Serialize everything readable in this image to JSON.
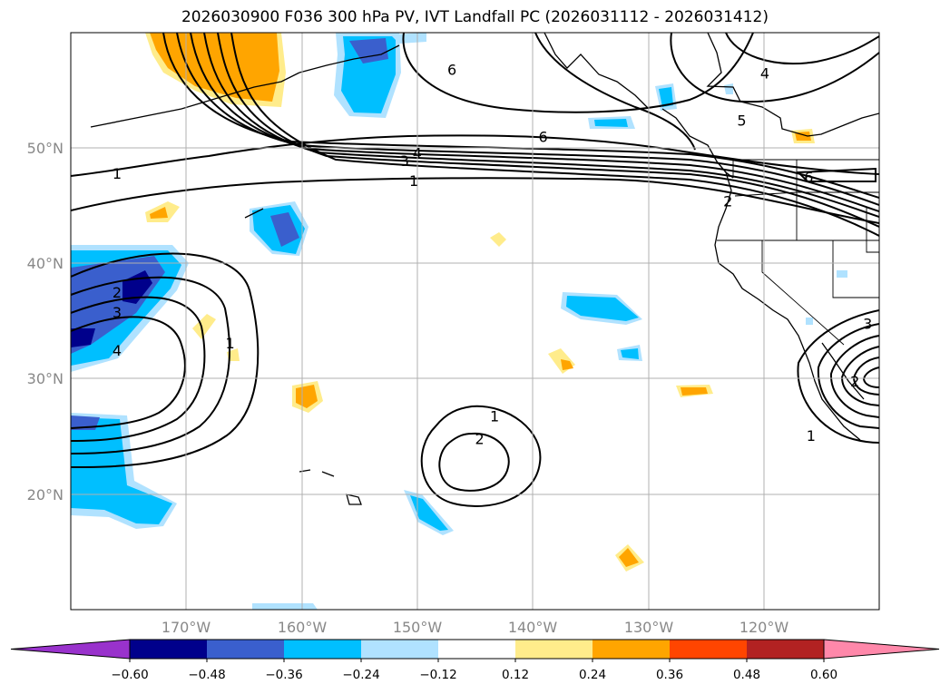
{
  "title": "2026030900 F036 300 hPa PV, IVT Landfall PC (2026031112 - 2026031412)",
  "map": {
    "lat_labels": [
      "50°N",
      "40°N",
      "30°N",
      "20°N"
    ],
    "lon_labels": [
      "170°W",
      "160°W",
      "150°W",
      "140°W",
      "130°W",
      "120°W"
    ],
    "lon_range": [
      -180,
      -110
    ],
    "lat_range": [
      10,
      60
    ]
  },
  "contour_labels": [
    {
      "text": "1",
      "lon": -176,
      "lat": 47.8
    },
    {
      "text": "1",
      "lon": -150.3,
      "lat": 47.2
    },
    {
      "text": "3",
      "lon": -151.1,
      "lat": 48.9
    },
    {
      "text": "4",
      "lon": -150,
      "lat": 49.6
    },
    {
      "text": "6",
      "lon": -147,
      "lat": 56.8
    },
    {
      "text": "6",
      "lon": -139.1,
      "lat": 51
    },
    {
      "text": "4",
      "lon": -119.9,
      "lat": 56.5
    },
    {
      "text": "5",
      "lon": -121.9,
      "lat": 52.4
    },
    {
      "text": "6",
      "lon": -116.1,
      "lat": 47.5
    },
    {
      "text": "2",
      "lon": -123.1,
      "lat": 45.4
    },
    {
      "text": "2",
      "lon": -176,
      "lat": 37.5
    },
    {
      "text": "3",
      "lon": -176,
      "lat": 35.8
    },
    {
      "text": "4",
      "lon": -176,
      "lat": 32.5
    },
    {
      "text": "1",
      "lon": -166.2,
      "lat": 33.1
    },
    {
      "text": "1",
      "lon": -143.3,
      "lat": 26.8
    },
    {
      "text": "2",
      "lon": -144.6,
      "lat": 24.8
    },
    {
      "text": "3",
      "lon": -111,
      "lat": 34.8
    },
    {
      "text": "2",
      "lon": -112.1,
      "lat": 29.8
    },
    {
      "text": "1",
      "lon": -115.9,
      "lat": 25.1
    }
  ],
  "colorbar": {
    "ticks": [
      "−0.60",
      "−0.48",
      "−0.36",
      "−0.24",
      "−0.12",
      "0.12",
      "0.24",
      "0.36",
      "0.48",
      "0.60"
    ],
    "colors": [
      "#9932cc",
      "#00008b",
      "#3a5fcd",
      "#00bfff",
      "#b0e2ff",
      "#ffffff",
      "#ffec8b",
      "#ffa500",
      "#ff4500",
      "#b22222",
      "#ff88aa"
    ]
  }
}
